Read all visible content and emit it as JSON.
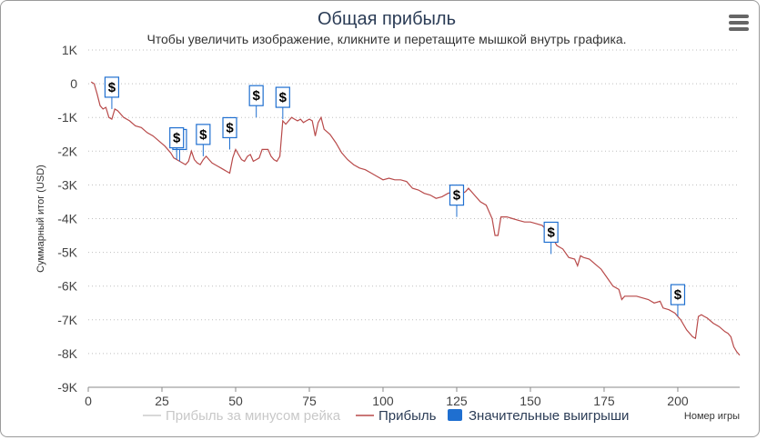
{
  "title": "Общая прибыль",
  "subtitle": "Чтобы увеличить изображение, кликните и перетащите мышкой внутрь графика.",
  "menu_icon": "hamburger-menu-icon",
  "colors": {
    "line": "#b84a4a",
    "rake_line": "#cccccc",
    "flag": "#1f6fd0",
    "grid": "#bfbfbf",
    "title": "#2b3c56"
  },
  "chart_data": {
    "type": "line",
    "title": "Общая прибыль",
    "subtitle": "Чтобы увеличить изображение, кликните и перетащите мышкой внутрь графика.",
    "xlabel": "Номер игры",
    "ylabel": "Суммарный итог (USD)",
    "xlim": [
      0,
      221
    ],
    "ylim": [
      -9000,
      1000
    ],
    "x_ticks": [
      0,
      25,
      50,
      75,
      100,
      125,
      150,
      175,
      200
    ],
    "y_ticks": [
      1000,
      0,
      -1000,
      -2000,
      -3000,
      -4000,
      -5000,
      -6000,
      -7000,
      -8000,
      -9000
    ],
    "y_tick_labels": [
      "1K",
      "0",
      "-1K",
      "-2K",
      "-3K",
      "-4K",
      "-5K",
      "-6K",
      "-7K",
      "-8K",
      "-9K"
    ],
    "grid": true,
    "legend_position": "bottom",
    "legend": [
      {
        "name": "Прибыль за минусом рейка",
        "type": "line",
        "visible": false
      },
      {
        "name": "Прибыль",
        "type": "line",
        "visible": true
      },
      {
        "name": "Значительные выигрыши",
        "type": "flag",
        "visible": true
      }
    ],
    "series": [
      {
        "name": "Прибыль",
        "points": [
          [
            1,
            50
          ],
          [
            2,
            0
          ],
          [
            3,
            -300
          ],
          [
            4,
            -650
          ],
          [
            5,
            -750
          ],
          [
            6,
            -700
          ],
          [
            7,
            -1000
          ],
          [
            8,
            -1050
          ],
          [
            9,
            -750
          ],
          [
            10,
            -800
          ],
          [
            12,
            -1000
          ],
          [
            14,
            -1100
          ],
          [
            16,
            -1250
          ],
          [
            18,
            -1300
          ],
          [
            20,
            -1450
          ],
          [
            22,
            -1550
          ],
          [
            24,
            -1700
          ],
          [
            26,
            -1850
          ],
          [
            28,
            -2050
          ],
          [
            29,
            -2200
          ],
          [
            31,
            -2300
          ],
          [
            33,
            -2400
          ],
          [
            34,
            -2300
          ],
          [
            35,
            -2000
          ],
          [
            36,
            -2250
          ],
          [
            37,
            -2350
          ],
          [
            38,
            -2400
          ],
          [
            39,
            -2250
          ],
          [
            40,
            -2150
          ],
          [
            41,
            -2250
          ],
          [
            42,
            -2350
          ],
          [
            43,
            -2400
          ],
          [
            44,
            -2450
          ],
          [
            45,
            -2500
          ],
          [
            46,
            -2550
          ],
          [
            47,
            -2600
          ],
          [
            48,
            -2650
          ],
          [
            49,
            -2200
          ],
          [
            50,
            -1950
          ],
          [
            51,
            -2100
          ],
          [
            52,
            -2250
          ],
          [
            53,
            -2300
          ],
          [
            54,
            -2150
          ],
          [
            55,
            -2100
          ],
          [
            56,
            -2300
          ],
          [
            57,
            -2250
          ],
          [
            58,
            -2200
          ],
          [
            59,
            -1950
          ],
          [
            60,
            -1950
          ],
          [
            61,
            -1950
          ],
          [
            62,
            -2150
          ],
          [
            63,
            -2250
          ],
          [
            64,
            -2300
          ],
          [
            65,
            -2150
          ],
          [
            66,
            -1100
          ],
          [
            67,
            -1200
          ],
          [
            68,
            -1100
          ],
          [
            69,
            -1000
          ],
          [
            70,
            -1050
          ],
          [
            71,
            -1100
          ],
          [
            72,
            -1050
          ],
          [
            73,
            -1150
          ],
          [
            74,
            -1100
          ],
          [
            75,
            -1050
          ],
          [
            76,
            -1100
          ],
          [
            77,
            -1550
          ],
          [
            78,
            -1150
          ],
          [
            79,
            -1000
          ],
          [
            80,
            -1350
          ],
          [
            82,
            -1500
          ],
          [
            84,
            -1750
          ],
          [
            86,
            -2050
          ],
          [
            88,
            -2250
          ],
          [
            90,
            -2400
          ],
          [
            92,
            -2500
          ],
          [
            94,
            -2550
          ],
          [
            96,
            -2650
          ],
          [
            98,
            -2750
          ],
          [
            100,
            -2850
          ],
          [
            102,
            -2800
          ],
          [
            104,
            -2850
          ],
          [
            106,
            -2850
          ],
          [
            108,
            -2900
          ],
          [
            110,
            -3100
          ],
          [
            112,
            -3150
          ],
          [
            114,
            -3250
          ],
          [
            116,
            -3300
          ],
          [
            118,
            -3400
          ],
          [
            120,
            -3350
          ],
          [
            122,
            -3250
          ],
          [
            124,
            -3200
          ],
          [
            126,
            -3300
          ],
          [
            128,
            -3200
          ],
          [
            129,
            -3100
          ],
          [
            131,
            -3300
          ],
          [
            133,
            -3500
          ],
          [
            135,
            -3600
          ],
          [
            137,
            -4000
          ],
          [
            138,
            -4500
          ],
          [
            139,
            -4500
          ],
          [
            140,
            -3950
          ],
          [
            142,
            -3950
          ],
          [
            144,
            -4000
          ],
          [
            146,
            -4050
          ],
          [
            148,
            -4100
          ],
          [
            150,
            -4100
          ],
          [
            152,
            -4150
          ],
          [
            154,
            -4200
          ],
          [
            156,
            -4400
          ],
          [
            157,
            -4500
          ],
          [
            159,
            -4800
          ],
          [
            161,
            -4900
          ],
          [
            163,
            -5150
          ],
          [
            165,
            -5200
          ],
          [
            166,
            -5400
          ],
          [
            167,
            -5100
          ],
          [
            168,
            -5150
          ],
          [
            170,
            -5200
          ],
          [
            172,
            -5350
          ],
          [
            174,
            -5500
          ],
          [
            176,
            -5750
          ],
          [
            178,
            -6000
          ],
          [
            180,
            -6100
          ],
          [
            181,
            -6400
          ],
          [
            182,
            -6300
          ],
          [
            184,
            -6300
          ],
          [
            186,
            -6300
          ],
          [
            188,
            -6350
          ],
          [
            190,
            -6400
          ],
          [
            192,
            -6500
          ],
          [
            194,
            -6450
          ],
          [
            195,
            -6650
          ],
          [
            197,
            -6700
          ],
          [
            199,
            -6800
          ],
          [
            201,
            -7000
          ],
          [
            203,
            -7300
          ],
          [
            205,
            -7500
          ],
          [
            206,
            -7550
          ],
          [
            207,
            -6900
          ],
          [
            208,
            -6850
          ],
          [
            209,
            -6900
          ],
          [
            210,
            -6950
          ],
          [
            212,
            -7100
          ],
          [
            214,
            -7200
          ],
          [
            216,
            -7350
          ],
          [
            217,
            -7400
          ],
          [
            218,
            -7500
          ],
          [
            219,
            -7800
          ],
          [
            220,
            -7950
          ],
          [
            221,
            -8050
          ]
        ]
      }
    ],
    "flags": [
      {
        "x": 8,
        "y": -750,
        "title": "$"
      },
      {
        "x": 31,
        "y": -2300,
        "title": "$"
      },
      {
        "x": 30,
        "y": -2250,
        "title": "$"
      },
      {
        "x": 39,
        "y": -2150,
        "title": "$"
      },
      {
        "x": 48,
        "y": -1950,
        "title": "$"
      },
      {
        "x": 57,
        "y": -1000,
        "title": "$"
      },
      {
        "x": 66,
        "y": -1050,
        "title": "$"
      },
      {
        "x": 125,
        "y": -3950,
        "title": "$"
      },
      {
        "x": 157,
        "y": -5050,
        "title": "$"
      },
      {
        "x": 200,
        "y": -6900,
        "title": "$"
      }
    ]
  }
}
